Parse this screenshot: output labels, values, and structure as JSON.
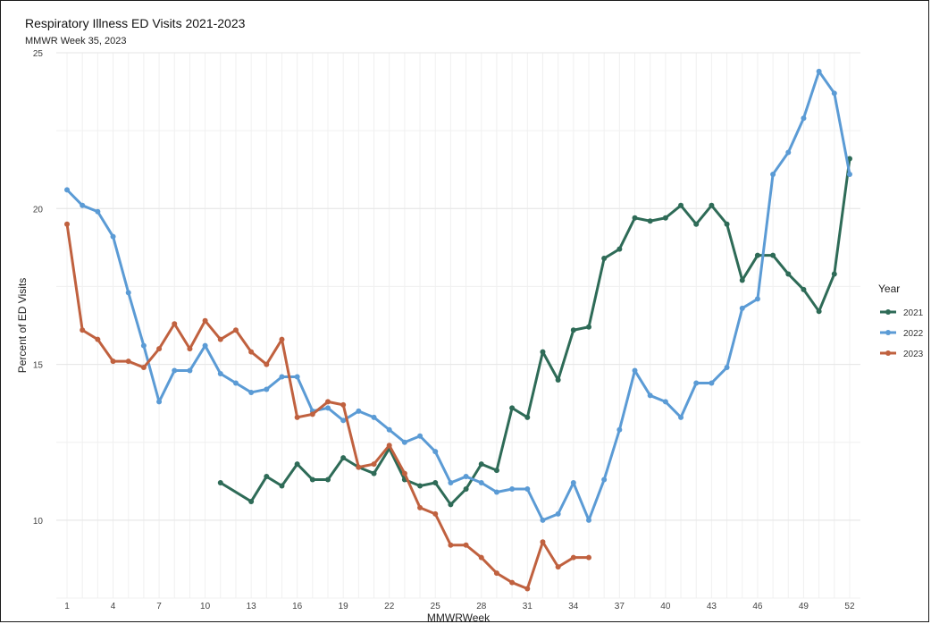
{
  "chart_data": {
    "type": "line",
    "title": "Respiratory Illness ED Visits 2021-2023",
    "subtitle": "MMWR Week 35, 2023",
    "xlabel": "MMWRWeek",
    "ylabel": "Percent of ED Visits",
    "xlim": [
      1,
      52
    ],
    "ylim": [
      7.5,
      25
    ],
    "x_ticks": [
      1,
      4,
      7,
      10,
      13,
      16,
      19,
      22,
      25,
      28,
      31,
      34,
      37,
      40,
      43,
      46,
      49,
      52
    ],
    "y_ticks": [
      10,
      15,
      20,
      25
    ],
    "grid": true,
    "legend": {
      "title": "Year",
      "position": "right"
    },
    "series": [
      {
        "name": "2021",
        "color": "#2e6b57",
        "x": [
          11,
          13,
          14,
          15,
          16,
          17,
          18,
          19,
          20,
          21,
          22,
          23,
          24,
          25,
          26,
          27,
          28,
          29,
          30,
          31,
          32,
          33,
          34,
          35,
          36,
          37,
          38,
          39,
          40,
          41,
          42,
          43,
          44,
          45,
          46,
          47,
          48,
          49,
          50,
          51,
          52
        ],
        "y": [
          11.2,
          10.6,
          11.4,
          11.1,
          11.8,
          11.3,
          11.3,
          12.0,
          11.7,
          11.5,
          12.3,
          11.3,
          11.1,
          11.2,
          10.5,
          11.0,
          11.8,
          11.6,
          13.6,
          13.3,
          15.4,
          14.5,
          16.1,
          16.2,
          18.4,
          18.7,
          19.7,
          19.6,
          19.7,
          20.1,
          19.5,
          20.1,
          19.5,
          17.7,
          18.5,
          18.5,
          17.9,
          17.4,
          16.7,
          17.9,
          21.6
        ]
      },
      {
        "name": "2022",
        "color": "#5b9bd5",
        "x": [
          1,
          2,
          3,
          4,
          5,
          6,
          7,
          8,
          9,
          10,
          11,
          12,
          13,
          14,
          15,
          16,
          17,
          18,
          19,
          20,
          21,
          22,
          23,
          24,
          25,
          26,
          27,
          28,
          29,
          30,
          31,
          32,
          33,
          34,
          35,
          36,
          37,
          38,
          39,
          40,
          41,
          42,
          43,
          44,
          45,
          46,
          47,
          48,
          49,
          50,
          51,
          52
        ],
        "y": [
          20.6,
          20.1,
          19.9,
          19.1,
          17.3,
          15.6,
          13.8,
          14.8,
          14.8,
          15.6,
          14.7,
          14.4,
          14.1,
          14.2,
          14.6,
          14.6,
          13.5,
          13.6,
          13.2,
          13.5,
          13.3,
          12.9,
          12.5,
          12.7,
          12.2,
          11.2,
          11.4,
          11.2,
          10.9,
          11.0,
          11.0,
          10.0,
          10.2,
          11.2,
          10.0,
          11.3,
          12.9,
          14.8,
          14.0,
          13.8,
          13.3,
          14.4,
          14.4,
          14.9,
          16.8,
          17.1,
          21.1,
          21.8,
          22.9,
          24.4,
          23.7,
          21.1
        ]
      },
      {
        "name": "2023",
        "color": "#c0613f",
        "x": [
          1,
          2,
          3,
          4,
          5,
          6,
          7,
          8,
          9,
          10,
          11,
          12,
          13,
          14,
          15,
          16,
          17,
          18,
          19,
          20,
          21,
          22,
          23,
          24,
          25,
          26,
          27,
          28,
          29,
          30,
          31,
          32,
          33,
          34,
          35
        ],
        "y": [
          19.5,
          16.1,
          15.8,
          15.1,
          15.1,
          14.9,
          15.5,
          16.3,
          15.5,
          16.4,
          15.8,
          16.1,
          15.4,
          15.0,
          15.8,
          13.3,
          13.4,
          13.8,
          13.7,
          11.7,
          11.8,
          12.4,
          11.5,
          10.4,
          10.2,
          9.2,
          9.2,
          8.8,
          8.3,
          8.0,
          7.8,
          9.3,
          8.5,
          8.8,
          8.8
        ]
      }
    ]
  }
}
